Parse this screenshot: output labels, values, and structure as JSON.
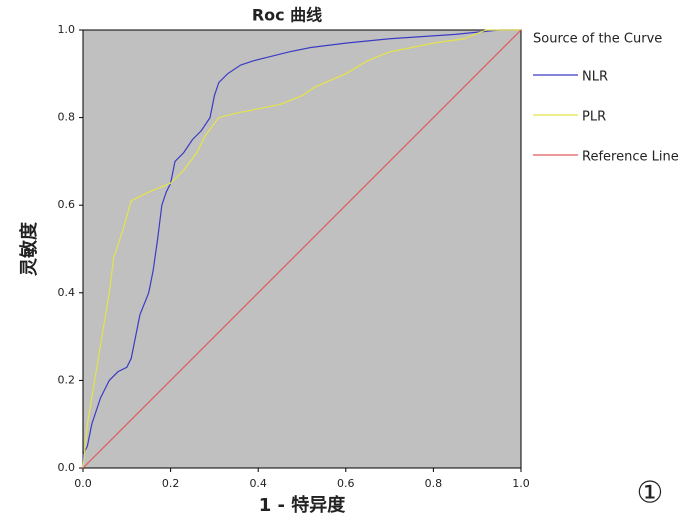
{
  "chart_data": {
    "type": "line",
    "title": "Roc 曲线",
    "xlabel": "1 - 特异度",
    "ylabel": "灵敏度",
    "legend_title": "Source of the Curve",
    "legend": "right",
    "annotation": "①",
    "xlim": [
      0,
      1
    ],
    "ylim": [
      0,
      1
    ],
    "xticks": [
      {
        "value": 0,
        "label": "0.0"
      },
      0.2,
      0.4,
      0.6,
      0.8,
      {
        "value": 1,
        "label": "1.0"
      }
    ],
    "yticks": [
      {
        "value": 0,
        "label": "0.0"
      },
      0.2,
      0.4,
      0.6,
      0.8,
      {
        "value": 1,
        "label": "1.0"
      }
    ],
    "series": [
      {
        "name": "NLR",
        "color": "#3b3bc4",
        "x": [
          0,
          0,
          0.01,
          0.02,
          0.03,
          0.04,
          0.05,
          0.06,
          0.08,
          0.1,
          0.11,
          0.12,
          0.13,
          0.15,
          0.16,
          0.17,
          0.18,
          0.19,
          0.2,
          0.21,
          0.23,
          0.25,
          0.27,
          0.29,
          0.3,
          0.31,
          0.33,
          0.36,
          0.39,
          0.43,
          0.47,
          0.52,
          0.6,
          0.7,
          0.85,
          0.95,
          1
        ],
        "values": [
          0,
          0.03,
          0.05,
          0.1,
          0.13,
          0.16,
          0.18,
          0.2,
          0.22,
          0.23,
          0.25,
          0.3,
          0.35,
          0.4,
          0.45,
          0.52,
          0.6,
          0.63,
          0.65,
          0.7,
          0.72,
          0.75,
          0.77,
          0.8,
          0.85,
          0.88,
          0.9,
          0.92,
          0.93,
          0.94,
          0.95,
          0.96,
          0.97,
          0.98,
          0.99,
          1,
          1
        ]
      },
      {
        "name": "PLR",
        "color": "#e4e44a",
        "x": [
          0,
          0.01,
          0.02,
          0.03,
          0.04,
          0.05,
          0.06,
          0.07,
          0.09,
          0.11,
          0.15,
          0.2,
          0.23,
          0.26,
          0.28,
          0.31,
          0.35,
          0.4,
          0.45,
          0.5,
          0.53,
          0.6,
          0.65,
          0.7,
          0.8,
          0.87,
          0.92,
          1
        ],
        "values": [
          0,
          0.1,
          0.16,
          0.22,
          0.28,
          0.34,
          0.4,
          0.48,
          0.54,
          0.61,
          0.63,
          0.65,
          0.68,
          0.72,
          0.76,
          0.8,
          0.81,
          0.82,
          0.83,
          0.85,
          0.87,
          0.9,
          0.93,
          0.95,
          0.97,
          0.98,
          1,
          1
        ]
      },
      {
        "name": "Reference Line",
        "color": "#e05a5a",
        "x": [
          0,
          1
        ],
        "values": [
          0,
          1
        ]
      }
    ]
  }
}
